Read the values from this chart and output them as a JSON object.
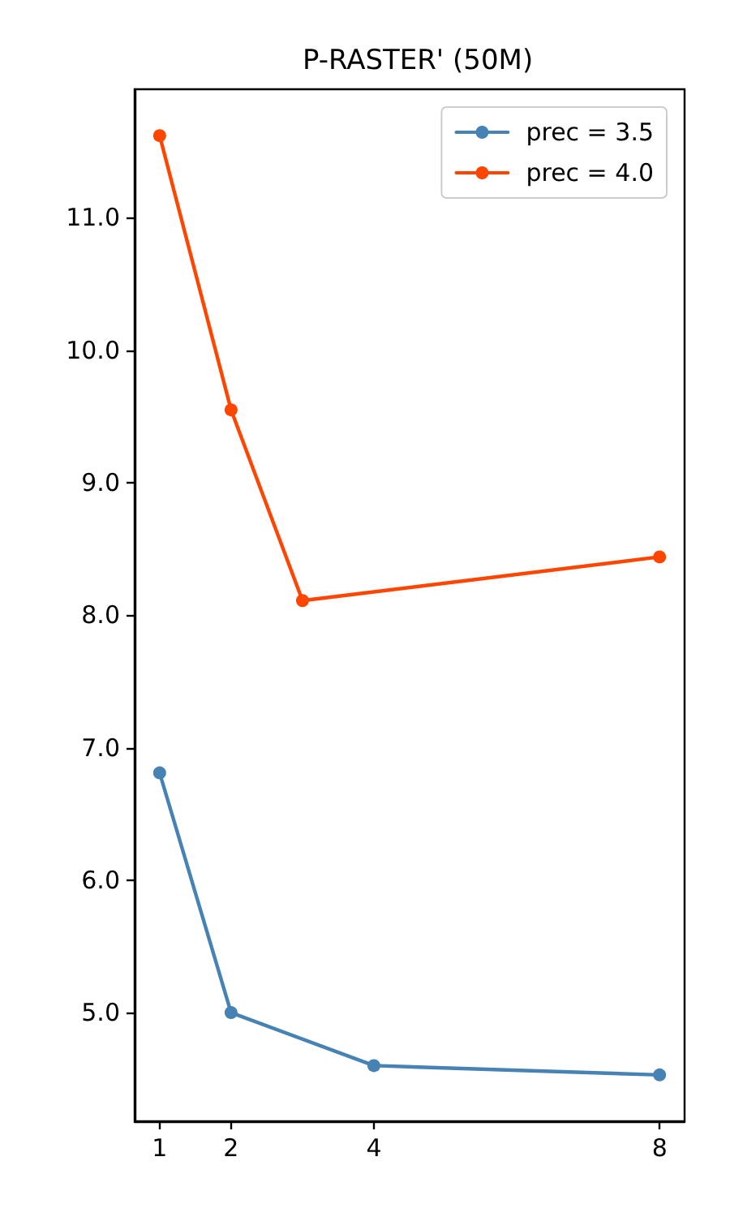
{
  "chart_data": {
    "type": "line",
    "title": "P-RASTER' (50M)",
    "x": [
      1,
      2,
      4,
      8
    ],
    "series": [
      {
        "name": "prec = 3.5",
        "color": "#4682b4",
        "values": [
          6.81,
          5.0,
          4.6,
          4.53
        ]
      },
      {
        "name": "prec = 4.0",
        "color": "#ff4500",
        "x": [
          1,
          2,
          3,
          8
        ],
        "values": [
          11.62,
          9.55,
          8.11,
          8.44
        ]
      }
    ],
    "xlim": [
      0.65,
      8.35
    ],
    "xticks": [
      1,
      2,
      4,
      8
    ],
    "ylim": [
      4.18,
      11.97
    ],
    "yticks": [
      {
        "value": 5,
        "label": "5.0"
      },
      {
        "value": 6,
        "label": "6.0"
      },
      {
        "value": 7,
        "label": "7.0"
      },
      {
        "value": 8,
        "label": "8.0"
      },
      {
        "value": 9,
        "label": "9.0"
      },
      {
        "value": 10,
        "label": "10.0"
      },
      {
        "value": 11,
        "label": "11.0"
      }
    ],
    "legend": "top right",
    "marker": "circle",
    "line_style": "solid",
    "grid": false
  }
}
